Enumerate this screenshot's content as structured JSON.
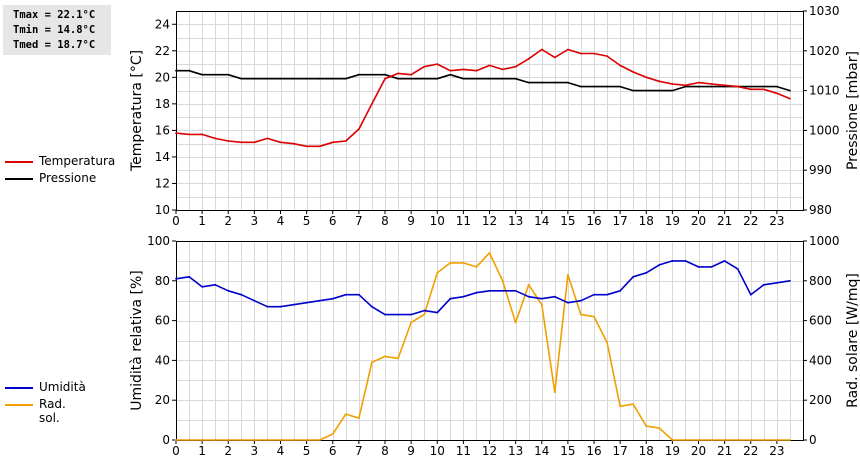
{
  "stats": {
    "tmax": "Tmax = 22.1°C",
    "tmin": "Tmin = 14.8°C",
    "tmed": "Tmed = 18.7°C"
  },
  "legend_top": [
    {
      "label": "Temperatura",
      "color": "#dd0000"
    },
    {
      "label": "Pressione",
      "color": "#000000"
    }
  ],
  "legend_bottom": [
    {
      "label": "Umidità",
      "color": "#0000cc"
    },
    {
      "label": "Rad. sol.",
      "color": "#f0a000"
    }
  ],
  "chart_data": [
    {
      "type": "line",
      "x_ticks": [
        "0",
        "1",
        "2",
        "3",
        "4",
        "5",
        "6",
        "7",
        "8",
        "9",
        "10",
        "11",
        "12",
        "13",
        "14",
        "15",
        "16",
        "17",
        "18",
        "19",
        "20",
        "21",
        "22",
        "23"
      ],
      "xlim": [
        0,
        24
      ],
      "left_axis": {
        "label": "Temperatura [°C]",
        "ylim": [
          10,
          25
        ],
        "ticks": [
          10,
          12,
          14,
          16,
          18,
          20,
          22,
          24
        ]
      },
      "right_axis": {
        "label": "Pressione [mbar]",
        "ylim": [
          980,
          1030
        ],
        "ticks": [
          980,
          990,
          1000,
          1010,
          1020,
          1030
        ]
      },
      "grid": true,
      "series": [
        {
          "name": "Temperatura",
          "axis": "left",
          "color": "#dd0000",
          "x": [
            0,
            0.5,
            1,
            1.5,
            2,
            2.5,
            3,
            3.5,
            4,
            4.5,
            5,
            5.5,
            6,
            6.5,
            7,
            7.5,
            8,
            8.5,
            9,
            9.5,
            10,
            10.5,
            11,
            11.5,
            12,
            12.5,
            13,
            13.5,
            14,
            14.5,
            15,
            15.5,
            16,
            16.5,
            17,
            17.5,
            18,
            18.5,
            19,
            19.5,
            20,
            20.5,
            21,
            21.5,
            22,
            22.5,
            23,
            23.5
          ],
          "y": [
            15.8,
            15.7,
            15.7,
            15.4,
            15.2,
            15.1,
            15.1,
            15.4,
            15.1,
            15.0,
            14.8,
            14.8,
            15.1,
            15.2,
            16.1,
            18.0,
            19.9,
            20.3,
            20.2,
            20.8,
            21.0,
            20.5,
            20.6,
            20.5,
            20.9,
            20.6,
            20.8,
            21.4,
            22.1,
            21.5,
            22.1,
            21.8,
            21.8,
            21.6,
            20.9,
            20.4,
            20.0,
            19.7,
            19.5,
            19.4,
            19.6,
            19.5,
            19.4,
            19.3,
            19.1,
            19.1,
            18.8,
            18.4
          ]
        },
        {
          "name": "Pressione",
          "axis": "right",
          "color": "#000000",
          "x": [
            0,
            0.5,
            1,
            1.5,
            2,
            2.5,
            3,
            3.5,
            4,
            4.5,
            5,
            5.5,
            6,
            6.5,
            7,
            7.5,
            8,
            8.5,
            9,
            9.5,
            10,
            10.5,
            11,
            11.5,
            12,
            12.5,
            13,
            13.5,
            14,
            14.5,
            15,
            15.5,
            16,
            16.5,
            17,
            17.5,
            18,
            18.5,
            19,
            19.5,
            20,
            20.5,
            21,
            21.5,
            22,
            22.5,
            23,
            23.5
          ],
          "y": [
            1015,
            1015,
            1014,
            1014,
            1014,
            1013,
            1013,
            1013,
            1013,
            1013,
            1013,
            1013,
            1013,
            1013,
            1014,
            1014,
            1014,
            1013,
            1013,
            1013,
            1013,
            1014,
            1013,
            1013,
            1013,
            1013,
            1013,
            1012,
            1012,
            1012,
            1012,
            1011,
            1011,
            1011,
            1011,
            1010,
            1010,
            1010,
            1010,
            1011,
            1011,
            1011,
            1011,
            1011,
            1011,
            1011,
            1011,
            1010
          ]
        }
      ]
    },
    {
      "type": "line",
      "x_ticks": [
        "0",
        "1",
        "2",
        "3",
        "4",
        "5",
        "6",
        "7",
        "8",
        "9",
        "10",
        "11",
        "12",
        "13",
        "14",
        "15",
        "16",
        "17",
        "18",
        "19",
        "20",
        "21",
        "22",
        "23"
      ],
      "xlim": [
        0,
        24
      ],
      "left_axis": {
        "label": "Umidità relativa [%]",
        "ylim": [
          0,
          100
        ],
        "ticks": [
          0,
          20,
          40,
          60,
          80,
          100
        ]
      },
      "right_axis": {
        "label": "Rad. solare [W/mq]",
        "ylim": [
          0,
          1000
        ],
        "ticks": [
          0,
          200,
          400,
          600,
          800,
          1000
        ]
      },
      "grid": true,
      "series": [
        {
          "name": "Umidità",
          "axis": "left",
          "color": "#0000cc",
          "x": [
            0,
            0.5,
            1,
            1.5,
            2,
            2.5,
            3,
            3.5,
            4,
            4.5,
            5,
            5.5,
            6,
            6.5,
            7,
            7.5,
            8,
            8.5,
            9,
            9.5,
            10,
            10.5,
            11,
            11.5,
            12,
            12.5,
            13,
            13.5,
            14,
            14.5,
            15,
            15.5,
            16,
            16.5,
            17,
            17.5,
            18,
            18.5,
            19,
            19.5,
            20,
            20.5,
            21,
            21.5,
            22,
            22.5,
            23,
            23.5
          ],
          "y": [
            81,
            82,
            77,
            78,
            75,
            73,
            70,
            67,
            67,
            68,
            69,
            70,
            71,
            73,
            73,
            67,
            63,
            63,
            63,
            65,
            64,
            71,
            72,
            74,
            75,
            75,
            75,
            72,
            71,
            72,
            69,
            70,
            73,
            73,
            75,
            82,
            84,
            88,
            90,
            90,
            87,
            87,
            90,
            86,
            73,
            78,
            79,
            80
          ]
        },
        {
          "name": "Rad. sol.",
          "axis": "right",
          "color": "#f0a000",
          "x": [
            0,
            0.5,
            1,
            1.5,
            2,
            2.5,
            3,
            3.5,
            4,
            4.5,
            5,
            5.5,
            6,
            6.5,
            7,
            7.5,
            8,
            8.5,
            9,
            9.5,
            10,
            10.5,
            11,
            11.5,
            12,
            12.5,
            13,
            13.5,
            14,
            14.5,
            15,
            15.5,
            16,
            16.5,
            17,
            17.5,
            18,
            18.5,
            19,
            19.5,
            20,
            20.5,
            21,
            21.5,
            22,
            22.5,
            23,
            23.5
          ],
          "y": [
            0,
            0,
            0,
            0,
            0,
            0,
            0,
            0,
            0,
            0,
            0,
            0,
            30,
            130,
            110,
            390,
            420,
            410,
            590,
            630,
            840,
            890,
            890,
            870,
            940,
            800,
            590,
            780,
            680,
            240,
            830,
            630,
            620,
            490,
            170,
            180,
            70,
            60,
            0,
            0,
            0,
            0,
            0,
            0,
            0,
            0,
            0,
            0
          ]
        }
      ]
    }
  ]
}
